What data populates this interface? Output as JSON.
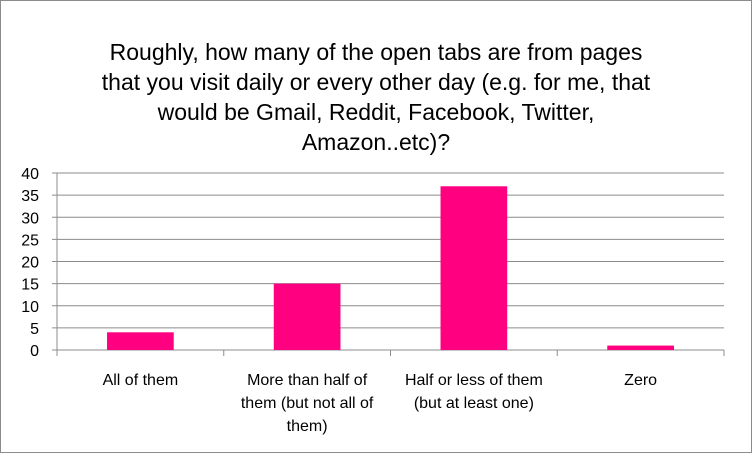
{
  "chart_data": {
    "type": "bar",
    "title": "Roughly, how many of the open tabs are from pages that you visit daily or every other day (e.g. for me, that would be Gmail, Reddit, Facebook, Twitter, Amazon..etc)?",
    "title_lines": [
      "Roughly, how many of the open tabs are from pages",
      "that you visit daily or every other day (e.g. for me, that",
      "would be Gmail, Reddit, Facebook, Twitter,",
      "Amazon..etc)?"
    ],
    "categories": [
      "All of them",
      "More than half of them (but not all of them)",
      "Half or less of them (but at least one)",
      "Zero"
    ],
    "category_lines": [
      [
        "All of them"
      ],
      [
        "More than half of",
        "them (but not all of",
        "them)"
      ],
      [
        "Half or less of them",
        "(but at least one)"
      ],
      [
        "Zero"
      ]
    ],
    "values": [
      4,
      15,
      37,
      1
    ],
    "ylim": [
      0,
      40
    ],
    "yticks": [
      "0",
      "5",
      "10",
      "15",
      "20",
      "25",
      "30",
      "35",
      "40"
    ],
    "grid": true,
    "legend": "none",
    "bar_color": "#ff0080",
    "grid_color": "#8c8c8c"
  }
}
